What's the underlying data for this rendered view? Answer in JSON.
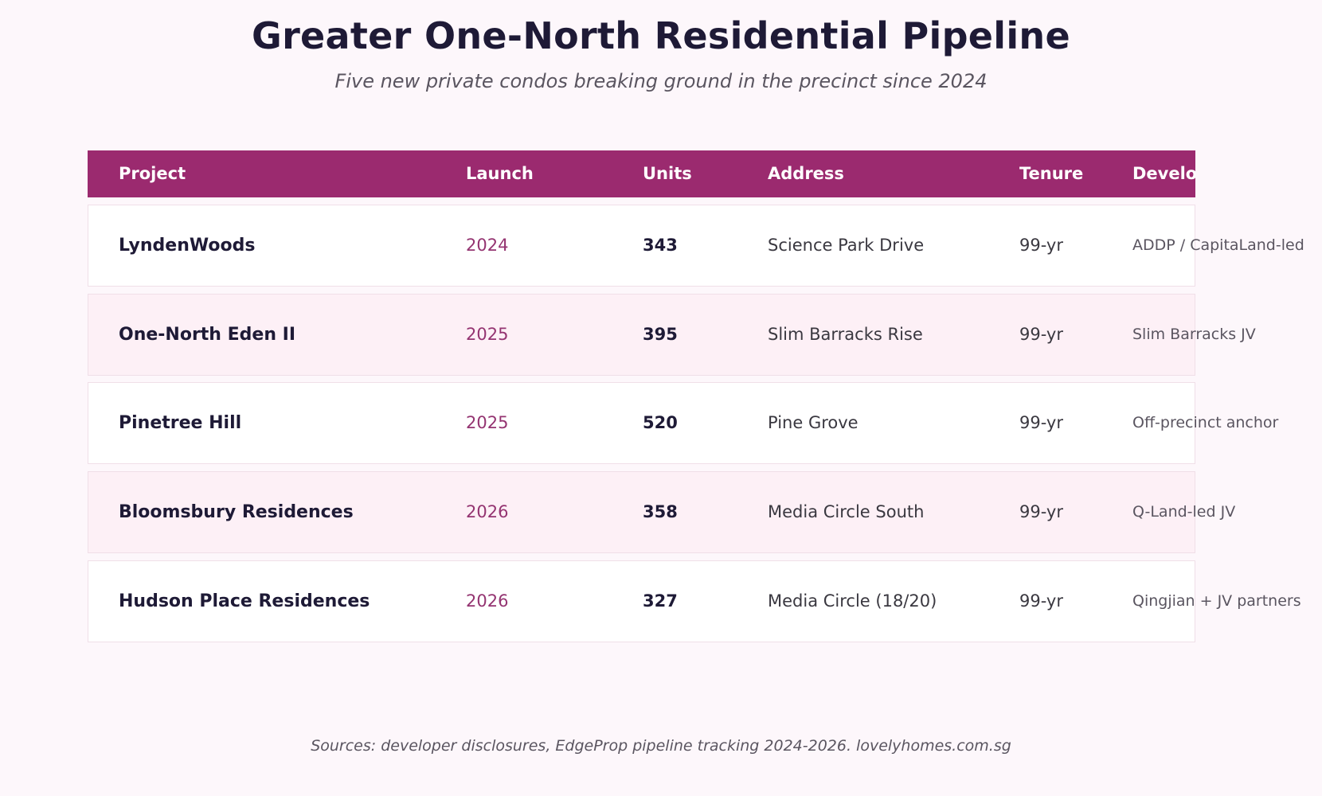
{
  "chart_data": {
    "type": "table",
    "title": "Greater One-North Residential Pipeline",
    "subtitle": "Five new private condos breaking ground in the precinct since 2024",
    "columns": [
      "Project",
      "Launch",
      "Units",
      "Address",
      "Tenure",
      "Developer"
    ],
    "rows": [
      {
        "project": "LyndenWoods",
        "launch": "2024",
        "units": "343",
        "address": "Science Park Drive",
        "tenure": "99-yr",
        "developer": "ADDP / CapitaLand-led"
      },
      {
        "project": "One-North Eden II",
        "launch": "2025",
        "units": "395",
        "address": "Slim Barracks Rise",
        "tenure": "99-yr",
        "developer": "Slim Barracks JV"
      },
      {
        "project": "Pinetree Hill",
        "launch": "2025",
        "units": "520",
        "address": "Pine Grove",
        "tenure": "99-yr",
        "developer": "Off-precinct anchor"
      },
      {
        "project": "Bloomsbury Residences",
        "launch": "2026",
        "units": "358",
        "address": "Media Circle South",
        "tenure": "99-yr",
        "developer": "Q-Land-led JV"
      },
      {
        "project": "Hudson Place Residences",
        "launch": "2026",
        "units": "327",
        "address": "Media Circle (18/20)",
        "tenure": "99-yr",
        "developer": "Qingjian + JV partners"
      }
    ],
    "source": "Sources: developer disclosures, EdgeProp pipeline tracking 2024-2026. lovelyhomes.com.sg"
  },
  "colors": {
    "header_bg": "#9b2a6f",
    "launch_text": "#943471",
    "page_bg": "#fdf7fb",
    "alt_row_bg": "#fdf0f6"
  }
}
